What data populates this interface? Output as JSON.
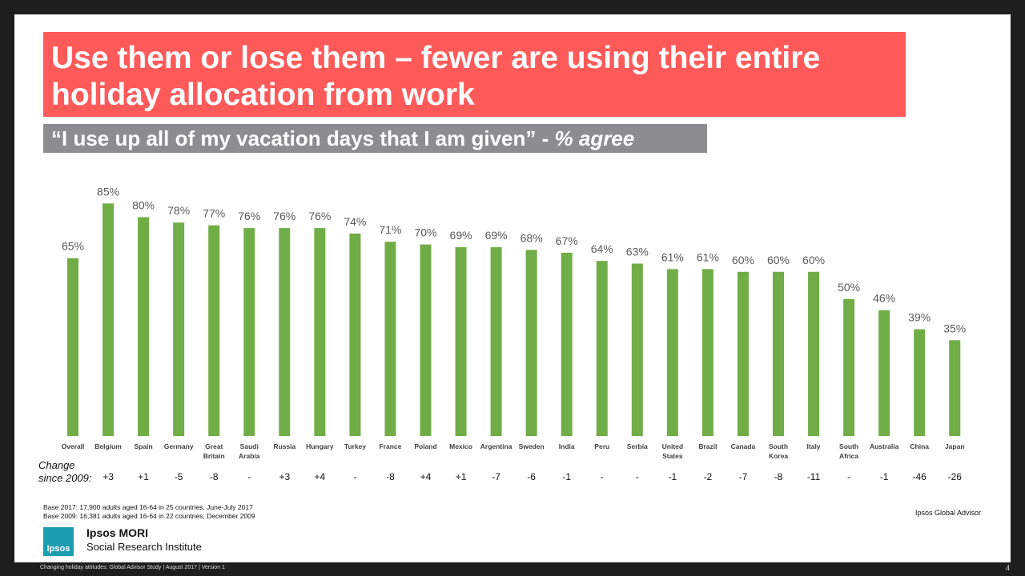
{
  "title": "Use them or lose them – fewer are using their entire holiday allocation from work",
  "subtitle_quote": "“I use up all of my vacation days that I am given” -",
  "subtitle_emph": "% agree",
  "change_label_line1": "Change",
  "change_label_line2": "since 2009:",
  "colors": {
    "bar": "#70ad47",
    "title_bg": "#fe5a5a",
    "subtitle_bg": "#8c8d8f"
  },
  "chart_data": {
    "type": "bar",
    "categories": [
      "Overall",
      "Belgium",
      "Spain",
      "Germany",
      "Great Britain",
      "Saudi Arabia",
      "Russia",
      "Hungary",
      "Turkey",
      "France",
      "Poland",
      "Mexico",
      "Argentina",
      "Sweden",
      "India",
      "Peru",
      "Serbia",
      "United States",
      "Brazil",
      "Canada",
      "South Korea",
      "Italy",
      "South Africa",
      "Australia",
      "China",
      "Japan"
    ],
    "category_lines": [
      [
        "Overall"
      ],
      [
        "Belgium"
      ],
      [
        "Spain"
      ],
      [
        "Germany"
      ],
      [
        "Great",
        "Britain"
      ],
      [
        "Saudi",
        "Arabia"
      ],
      [
        "Russia"
      ],
      [
        "Hungary"
      ],
      [
        "Turkey"
      ],
      [
        "France"
      ],
      [
        "Poland"
      ],
      [
        "Mexico"
      ],
      [
        "Argentina"
      ],
      [
        "Sweden"
      ],
      [
        "India"
      ],
      [
        "Peru"
      ],
      [
        "Serbia"
      ],
      [
        "United",
        "States"
      ],
      [
        "Brazil"
      ],
      [
        "Canada"
      ],
      [
        "South",
        "Korea"
      ],
      [
        "Italy"
      ],
      [
        "South",
        "Africa"
      ],
      [
        "Australia"
      ],
      [
        "China"
      ],
      [
        "Japan"
      ]
    ],
    "values": [
      65,
      85,
      80,
      78,
      77,
      76,
      76,
      76,
      74,
      71,
      70,
      69,
      69,
      68,
      67,
      64,
      63,
      61,
      61,
      60,
      60,
      60,
      50,
      46,
      39,
      35
    ],
    "value_labels": [
      "65%",
      "85%",
      "80%",
      "78%",
      "77%",
      "76%",
      "76%",
      "76%",
      "74%",
      "71%",
      "70%",
      "69%",
      "69%",
      "68%",
      "67%",
      "64%",
      "63%",
      "61%",
      "61%",
      "60%",
      "60%",
      "60%",
      "50%",
      "46%",
      "39%",
      "35%"
    ],
    "change_since_2009": [
      "+3",
      "+1",
      "-5",
      "-8",
      "-",
      "+3",
      "+4",
      "-",
      "-8",
      "+4",
      "+1",
      "-7",
      "-6",
      "-1",
      "-",
      "-",
      "-1",
      "-2",
      "-7",
      "-8",
      "-11",
      "-",
      "-1",
      "-46",
      "-26"
    ],
    "ylim": [
      0,
      100
    ],
    "unit": "%"
  },
  "base_2017": "Base 2017: 17,900 adults aged 16-64 in 25 countries, June-July 2017",
  "base_2009": "Base 2009: 16,381 adults aged 16-64 in 22 countries, December 2009",
  "source": "Ipsos Global Advisor",
  "logo_text": "Ipsos",
  "org_name": "Ipsos MORI",
  "org_sub": "Social Research Institute",
  "footer": "Changing holiday attitudes: Global Advisor Study | August 2017 | Version 1",
  "page_number": "4"
}
